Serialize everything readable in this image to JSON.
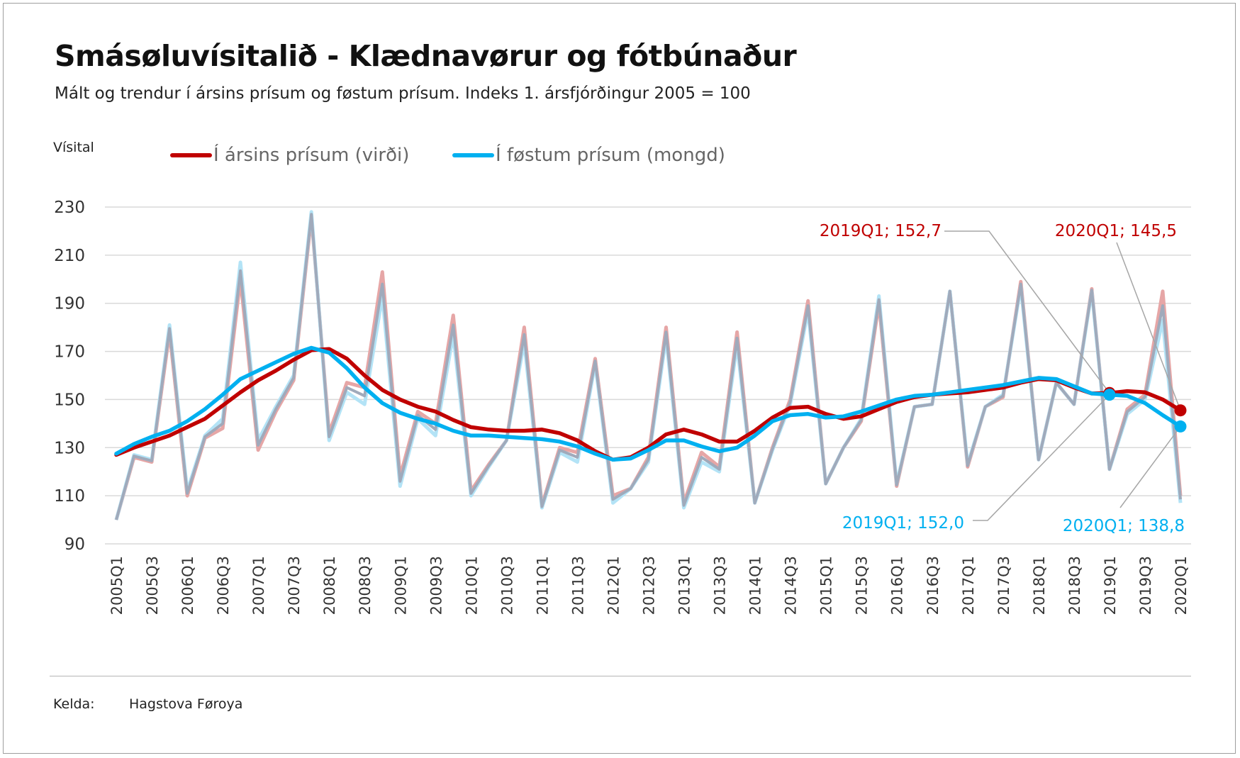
{
  "title": "Smásøluvísitalið - Klædnavørur og fótbúnaður",
  "subtitle": "Mált og trendur í ársins prísum og føstum prísum. Indeks 1. ársfjórðingur 2005 = 100",
  "source": {
    "label": "Kelda:",
    "value": "Hagstova Føroya"
  },
  "colors": {
    "red": "#c00000",
    "red_light": "#e6a6a6",
    "blue": "#00b0f0",
    "blue_light": "#b3e3f6",
    "gray_overlap": "#a0aabb",
    "grid": "#d9d9d9",
    "leader": "#a6a6a6"
  },
  "chart_data": {
    "type": "line",
    "ylabel": "Vísital",
    "ylim": [
      90,
      230
    ],
    "yticks": [
      90,
      110,
      130,
      150,
      170,
      190,
      210,
      230
    ],
    "categories": [
      "2005Q1",
      "2005Q2",
      "2005Q3",
      "2005Q4",
      "2006Q1",
      "2006Q2",
      "2006Q3",
      "2006Q4",
      "2007Q1",
      "2007Q2",
      "2007Q3",
      "2007Q4",
      "2008Q1",
      "2008Q2",
      "2008Q3",
      "2008Q4",
      "2009Q1",
      "2009Q2",
      "2009Q3",
      "2009Q4",
      "2010Q1",
      "2010Q2",
      "2010Q3",
      "2010Q4",
      "2011Q1",
      "2011Q2",
      "2011Q3",
      "2011Q4",
      "2012Q1",
      "2012Q2",
      "2012Q3",
      "2012Q4",
      "2013Q1",
      "2013Q2",
      "2013Q3",
      "2013Q4",
      "2014Q1",
      "2014Q2",
      "2014Q3",
      "2014Q4",
      "2015Q1",
      "2015Q2",
      "2015Q3",
      "2015Q4",
      "2016Q1",
      "2016Q2",
      "2016Q3",
      "2016Q4",
      "2017Q1",
      "2017Q2",
      "2017Q3",
      "2017Q4",
      "2018Q1",
      "2018Q2",
      "2018Q3",
      "2018Q4",
      "2019Q1",
      "2019Q2",
      "2019Q3",
      "2019Q4",
      "2020Q1"
    ],
    "xtick_labels": [
      "2005Q1",
      "2005Q3",
      "2006Q1",
      "2006Q3",
      "2007Q1",
      "2007Q3",
      "2008Q1",
      "2008Q3",
      "2009Q1",
      "2009Q3",
      "2010Q1",
      "2010Q3",
      "2011Q1",
      "2011Q3",
      "2012Q1",
      "2012Q3",
      "2013Q1",
      "2013Q3",
      "2014Q1",
      "2014Q3",
      "2015Q1",
      "2015Q3",
      "2016Q1",
      "2016Q3",
      "2017Q1",
      "2017Q3",
      "2018Q1",
      "2018Q3",
      "2019Q1",
      "2019Q3",
      "2020Q1"
    ],
    "legend": [
      {
        "name": "Í ársins prísum (virði)",
        "color": "#c00000"
      },
      {
        "name": "Í føstum prísum (mongd)",
        "color": "#00b0f0"
      }
    ],
    "series": [
      {
        "name": "Í ársins prísum (virði)",
        "kind": "raw",
        "color": "#e6a6a6",
        "values": [
          100,
          126,
          124,
          178,
          110,
          134,
          138,
          200,
          129,
          145,
          158,
          226,
          136,
          157,
          155,
          203,
          118,
          145,
          140,
          185,
          112,
          123,
          133,
          180,
          106,
          130,
          128,
          167,
          110,
          113,
          126,
          180,
          107,
          128,
          122,
          178,
          107,
          130,
          150,
          191,
          115,
          130,
          141,
          190,
          114,
          147,
          148,
          195,
          122,
          147,
          151,
          199,
          125,
          157,
          148,
          196,
          121,
          146,
          152,
          195,
          110
        ]
      },
      {
        "name": "Í føstum prísum (mongd)",
        "kind": "raw",
        "color": "#b3e3f6",
        "values": [
          100,
          127,
          125,
          181,
          112,
          135,
          142,
          207,
          133,
          147,
          160,
          228,
          133,
          153,
          148,
          193,
          114,
          142,
          135,
          177,
          110,
          122,
          133,
          174,
          105,
          128,
          124,
          165,
          107,
          113,
          124,
          176,
          105,
          124,
          120,
          173,
          107,
          129,
          148,
          187,
          115,
          130,
          142,
          193,
          115,
          147,
          148,
          195,
          123,
          147,
          152,
          197,
          125,
          157,
          148,
          195,
          121,
          144,
          150,
          183,
          107
        ]
      },
      {
        "name": "Í ársins prísum (virði)",
        "kind": "trend",
        "color": "#c00000",
        "values": [
          127,
          130,
          132.5,
          135,
          138.5,
          142,
          147.5,
          153,
          158,
          162,
          166.5,
          170.5,
          171,
          167,
          160,
          154,
          150,
          147,
          145,
          141.5,
          138.5,
          137.5,
          137,
          137,
          137.5,
          136,
          133,
          128.5,
          125,
          126,
          130,
          135.5,
          137.5,
          135.5,
          132.5,
          132.5,
          137,
          142.5,
          146.5,
          147,
          144,
          142,
          143,
          146,
          149,
          151,
          152,
          152.5,
          153,
          154,
          155,
          157,
          158.5,
          158,
          155,
          152.5,
          152.7,
          153.5,
          153,
          150,
          145.5
        ]
      },
      {
        "name": "Í føstum prísum (mongd)",
        "kind": "trend",
        "color": "#00b0f0",
        "values": [
          127.5,
          131.5,
          134.5,
          137,
          141,
          146,
          152,
          158.5,
          162,
          165.5,
          169,
          171.5,
          169.5,
          163,
          155,
          148.5,
          144.5,
          142,
          140,
          137,
          135,
          135,
          134.5,
          134,
          133.5,
          132.5,
          130.5,
          127.5,
          125,
          125.5,
          129,
          133,
          133,
          130.5,
          128.5,
          130,
          135,
          141,
          143.5,
          144,
          142.5,
          143,
          145,
          147.5,
          150,
          151.5,
          152,
          153,
          154,
          155,
          156,
          157.5,
          159,
          158.5,
          155.5,
          152.5,
          152,
          151.5,
          148.5,
          143.5,
          138.8
        ]
      }
    ],
    "annotations": [
      {
        "label": "2019Q1; 152,7",
        "series": "Í ársins prísum (virði)",
        "x": "2019Q1",
        "y": 152.7,
        "color": "#c00000"
      },
      {
        "label": "2020Q1; 145,5",
        "series": "Í ársins prísum (virði)",
        "x": "2020Q1",
        "y": 145.5,
        "color": "#c00000"
      },
      {
        "label": "2019Q1; 152,0",
        "series": "Í føstum prísum (mongd)",
        "x": "2019Q1",
        "y": 152.0,
        "color": "#00b0f0"
      },
      {
        "label": "2020Q1; 138,8",
        "series": "Í føstum prísum (mongd)",
        "x": "2020Q1",
        "y": 138.8,
        "color": "#00b0f0"
      }
    ]
  }
}
